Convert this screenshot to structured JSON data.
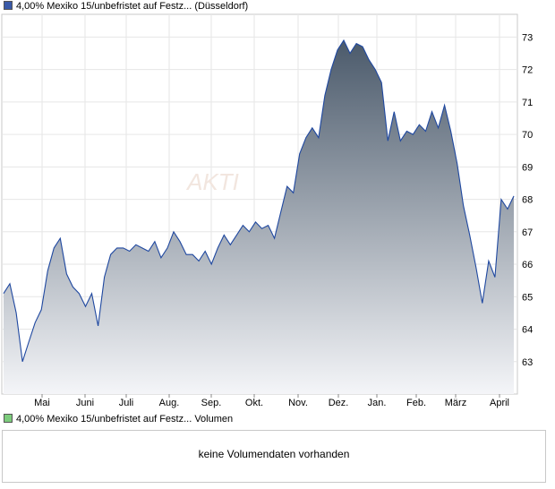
{
  "chart": {
    "legend_label": "4,00% Mexiko 15/unbefristet auf Festz... (Düsseldorf)",
    "watermark": "AKTI",
    "colors": {
      "line": "#1f48a0",
      "fill_top": "#4b5a6b",
      "fill_bottom": "#f4f5f8",
      "up_swatch": "#3a5aa8"
    }
  },
  "volume": {
    "legend_label": "4,00% Mexiko 15/unbefristet auf Festz... Volumen",
    "swatch_color": "#7ccc7c",
    "empty_text": "keine Volumendaten vorhanden"
  },
  "chart_data": {
    "type": "area",
    "title": "",
    "xlabel": "",
    "ylabel": "",
    "x_ticks": [
      "Mai",
      "Juni",
      "Juli",
      "Aug.",
      "Sep.",
      "Okt.",
      "Nov.",
      "Dez.",
      "Jan.",
      "Feb.",
      "März",
      "April"
    ],
    "y_ticks": [
      63,
      64,
      65,
      66,
      67,
      68,
      69,
      70,
      71,
      72,
      73
    ],
    "ylim": [
      62.0,
      73.7
    ],
    "x_range": [
      "Apr 15",
      "Apr 22 (next year)"
    ],
    "grid": true,
    "series": [
      {
        "values": [
          65.1,
          65.4,
          64.5,
          63.0,
          63.6,
          64.2,
          64.6,
          65.8,
          66.5,
          66.8,
          65.7,
          65.3,
          65.1,
          64.7,
          65.1,
          64.1,
          65.6,
          66.3,
          66.5,
          66.5,
          66.4,
          66.6,
          66.5,
          66.4,
          66.7,
          66.2,
          66.5,
          67.0,
          66.7,
          66.3,
          66.3,
          66.1,
          66.4,
          66.0,
          66.5,
          66.9,
          66.6,
          66.9,
          67.2,
          67.0,
          67.3,
          67.1,
          67.2,
          66.8,
          67.6,
          68.4,
          68.2,
          69.4,
          69.9,
          70.2,
          69.9,
          71.2,
          72.0,
          72.6,
          72.9,
          72.5,
          72.8,
          72.7,
          72.3,
          72.0,
          71.6,
          69.8,
          70.7,
          69.8,
          70.1,
          70.0,
          70.3,
          70.1,
          70.7,
          70.2,
          70.9,
          70.1,
          69.1,
          67.8,
          66.9,
          65.9,
          64.8,
          66.1,
          65.6,
          68.0,
          67.7,
          68.1
        ]
      }
    ]
  }
}
